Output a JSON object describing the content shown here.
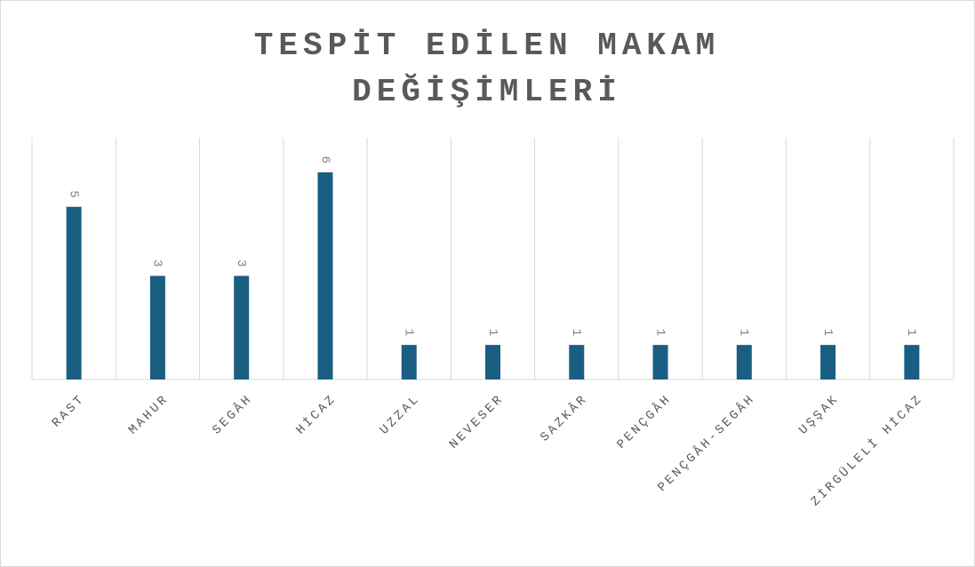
{
  "chart_data": {
    "type": "bar",
    "title": "TESPİT EDİLEN MAKAM DEĞİŞİMLERİ",
    "categories": [
      "RAST",
      "MAHUR",
      "SEGÂH",
      "HİCAZ",
      "UZZAL",
      "NEVESER",
      "SAZKÂR",
      "PENÇGÂH",
      "PENÇGÂH-SEGÂH",
      "UŞŞAK",
      "ZİRGÜLELİ HİCAZ"
    ],
    "values": [
      5,
      3,
      3,
      6,
      1,
      1,
      1,
      1,
      1,
      1,
      1
    ],
    "color": "#1a5e83",
    "ylim": [
      0,
      7
    ]
  }
}
